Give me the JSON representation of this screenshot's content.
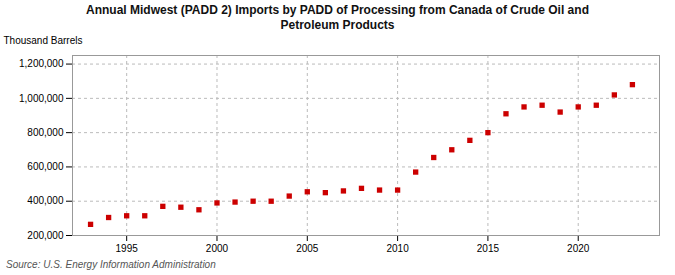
{
  "chart_data": {
    "type": "scatter",
    "title": "Annual Midwest (PADD 2) Imports by PADD of Processing from Canada of Crude Oil and\nPetroleum Products",
    "ylabel": "Thousand Barrels",
    "annotations": [
      "Source: U.S. Energy Information Administration"
    ],
    "x": [
      1993,
      1994,
      1995,
      1996,
      1997,
      1998,
      1999,
      2000,
      2001,
      2002,
      2003,
      2004,
      2005,
      2006,
      2007,
      2008,
      2009,
      2010,
      2011,
      2012,
      2013,
      2014,
      2015,
      2016,
      2017,
      2018,
      2019,
      2020,
      2021,
      2022,
      2023
    ],
    "values": [
      265000,
      305000,
      315000,
      315000,
      370000,
      365000,
      350000,
      390000,
      395000,
      400000,
      400000,
      430000,
      455000,
      450000,
      460000,
      475000,
      465000,
      465000,
      570000,
      655000,
      700000,
      755000,
      800000,
      910000,
      950000,
      960000,
      920000,
      950000,
      960000,
      1020000,
      1080000
    ],
    "color": "#cc0000",
    "marker": "square",
    "xlim": [
      1992,
      2024.5
    ],
    "xticks": [
      1995,
      2000,
      2005,
      2010,
      2015,
      2020
    ],
    "ylim": [
      200000,
      1250000
    ],
    "yticks": [
      {
        "value": 200000,
        "label": "200,000"
      },
      {
        "value": 400000,
        "label": "400,000"
      },
      {
        "value": 600000,
        "label": "600,000"
      },
      {
        "value": 800000,
        "label": "800,000"
      },
      {
        "value": 1000000,
        "label": "1,000,000"
      },
      {
        "value": 1200000,
        "label": "1,200,000"
      }
    ],
    "grid": true
  }
}
